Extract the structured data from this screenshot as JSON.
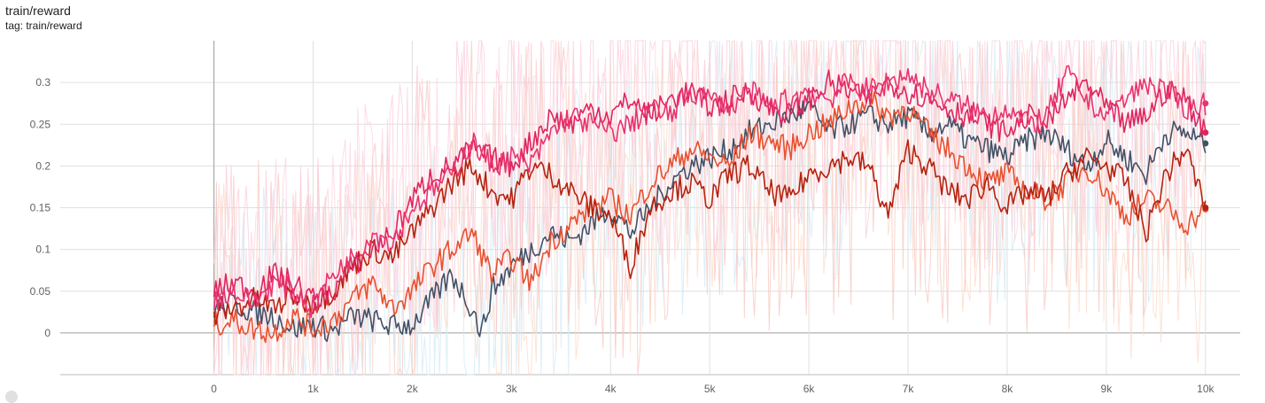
{
  "header": {
    "title": "train/reward",
    "subtitle": "tag: train/reward"
  },
  "chart_data": {
    "type": "line",
    "title": "train/reward",
    "subtitle": "tag: train/reward",
    "xlabel": "",
    "ylabel": "",
    "xlim": [
      -1550,
      10350
    ],
    "ylim": [
      -0.05,
      0.35
    ],
    "x_ticks": [
      {
        "value": 0,
        "label": "0"
      },
      {
        "value": 1000,
        "label": "1k"
      },
      {
        "value": 2000,
        "label": "2k"
      },
      {
        "value": 3000,
        "label": "3k"
      },
      {
        "value": 4000,
        "label": "4k"
      },
      {
        "value": 5000,
        "label": "5k"
      },
      {
        "value": 6000,
        "label": "6k"
      },
      {
        "value": 7000,
        "label": "7k"
      },
      {
        "value": 8000,
        "label": "8k"
      },
      {
        "value": 9000,
        "label": "9k"
      },
      {
        "value": 10000,
        "label": "10k"
      }
    ],
    "y_ticks": [
      {
        "value": 0,
        "label": "0"
      },
      {
        "value": 0.05,
        "label": "0.05"
      },
      {
        "value": 0.1,
        "label": "0.1"
      },
      {
        "value": 0.15,
        "label": "0.15"
      },
      {
        "value": 0.2,
        "label": "0.2"
      },
      {
        "value": 0.25,
        "label": "0.25"
      },
      {
        "value": 0.3,
        "label": "0.3"
      }
    ],
    "grid": true,
    "legend": "none",
    "series": [
      {
        "color": "#425066",
        "raw_color": "#cfe9f7",
        "x": [
          0,
          200,
          400,
          600,
          800,
          1000,
          1200,
          1400,
          1600,
          1800,
          2000,
          2200,
          2400,
          2600,
          2700,
          2800,
          3000,
          3200,
          3400,
          3600,
          3800,
          4000,
          4200,
          4400,
          4600,
          4800,
          5000,
          5200,
          5400,
          5600,
          5800,
          6000,
          6200,
          6400,
          6600,
          6800,
          7000,
          7200,
          7400,
          7600,
          7800,
          8000,
          8200,
          8400,
          8600,
          8800,
          9000,
          9200,
          9400,
          9600,
          9800,
          10000
        ],
        "y": [
          0.03,
          0.035,
          0.025,
          0.02,
          0.005,
          0.01,
          0.002,
          0.02,
          0.015,
          0.008,
          0.01,
          0.04,
          0.07,
          0.03,
          0.0,
          0.05,
          0.08,
          0.1,
          0.12,
          0.11,
          0.13,
          0.15,
          0.12,
          0.15,
          0.18,
          0.2,
          0.21,
          0.22,
          0.24,
          0.25,
          0.26,
          0.27,
          0.24,
          0.25,
          0.26,
          0.25,
          0.26,
          0.24,
          0.25,
          0.23,
          0.22,
          0.21,
          0.23,
          0.24,
          0.22,
          0.2,
          0.23,
          0.21,
          0.19,
          0.24,
          0.24,
          0.227
        ]
      },
      {
        "color": "#e8502f",
        "raw_color": "#fbd9c8",
        "x": [
          0,
          200,
          400,
          600,
          800,
          1000,
          1200,
          1400,
          1600,
          1800,
          2000,
          2200,
          2400,
          2600,
          2800,
          3000,
          3200,
          3400,
          3600,
          3800,
          4000,
          4200,
          4400,
          4600,
          4800,
          5000,
          5200,
          5400,
          5600,
          5800,
          6000,
          6200,
          6400,
          6600,
          6800,
          7000,
          7200,
          7400,
          7600,
          7800,
          8000,
          8200,
          8400,
          8600,
          8800,
          9000,
          9200,
          9400,
          9600,
          9800,
          10000
        ],
        "y": [
          0.01,
          0.015,
          0.005,
          0.0,
          0.02,
          0.005,
          0.015,
          0.04,
          0.06,
          0.03,
          0.05,
          0.08,
          0.1,
          0.12,
          0.07,
          0.09,
          0.06,
          0.11,
          0.13,
          0.15,
          0.16,
          0.14,
          0.18,
          0.2,
          0.22,
          0.21,
          0.2,
          0.24,
          0.23,
          0.22,
          0.24,
          0.25,
          0.27,
          0.28,
          0.26,
          0.27,
          0.24,
          0.22,
          0.2,
          0.18,
          0.19,
          0.17,
          0.16,
          0.18,
          0.2,
          0.17,
          0.14,
          0.16,
          0.15,
          0.13,
          0.148
        ]
      },
      {
        "color": "#b5220f",
        "raw_color": "#f7c6bd",
        "x": [
          0,
          200,
          400,
          600,
          800,
          1000,
          1200,
          1400,
          1600,
          1800,
          2000,
          2200,
          2400,
          2600,
          2800,
          3000,
          3200,
          3400,
          3600,
          3800,
          4000,
          4200,
          4400,
          4600,
          4800,
          5000,
          5200,
          5400,
          5600,
          5800,
          6000,
          6200,
          6400,
          6600,
          6800,
          7000,
          7200,
          7400,
          7600,
          7800,
          8000,
          8200,
          8400,
          8600,
          8800,
          9000,
          9200,
          9400,
          9600,
          9800,
          10000
        ],
        "y": [
          0.02,
          0.03,
          0.04,
          0.03,
          0.045,
          0.035,
          0.05,
          0.08,
          0.1,
          0.09,
          0.12,
          0.15,
          0.18,
          0.2,
          0.17,
          0.16,
          0.2,
          0.19,
          0.17,
          0.15,
          0.14,
          0.08,
          0.15,
          0.17,
          0.18,
          0.16,
          0.19,
          0.2,
          0.17,
          0.16,
          0.19,
          0.2,
          0.21,
          0.2,
          0.14,
          0.22,
          0.2,
          0.17,
          0.16,
          0.18,
          0.15,
          0.17,
          0.16,
          0.19,
          0.21,
          0.2,
          0.18,
          0.12,
          0.19,
          0.22,
          0.15
        ]
      },
      {
        "color": "#e0245e",
        "raw_color": "#f9cbd8",
        "x": [
          0,
          200,
          400,
          600,
          800,
          1000,
          1200,
          1400,
          1600,
          1800,
          2000,
          2200,
          2400,
          2600,
          2800,
          3000,
          3200,
          3400,
          3600,
          3800,
          4000,
          4200,
          4400,
          4600,
          4800,
          5000,
          5200,
          5400,
          5600,
          5800,
          6000,
          6200,
          6400,
          6600,
          6800,
          7000,
          7200,
          7400,
          7600,
          7800,
          8000,
          8200,
          8400,
          8600,
          8800,
          9000,
          9200,
          9400,
          9600,
          9800,
          10000
        ],
        "y": [
          0.05,
          0.06,
          0.05,
          0.07,
          0.06,
          0.04,
          0.05,
          0.08,
          0.1,
          0.12,
          0.16,
          0.19,
          0.2,
          0.22,
          0.21,
          0.2,
          0.23,
          0.26,
          0.25,
          0.27,
          0.26,
          0.28,
          0.26,
          0.28,
          0.29,
          0.27,
          0.28,
          0.29,
          0.27,
          0.26,
          0.28,
          0.3,
          0.29,
          0.28,
          0.3,
          0.29,
          0.28,
          0.27,
          0.26,
          0.25,
          0.24,
          0.26,
          0.25,
          0.28,
          0.3,
          0.27,
          0.25,
          0.26,
          0.29,
          0.28,
          0.24
        ]
      },
      {
        "color": "#e8336f",
        "raw_color": "#fbd3df",
        "x": [
          0,
          200,
          400,
          600,
          800,
          1000,
          1200,
          1400,
          1600,
          1800,
          2000,
          2200,
          2400,
          2600,
          2800,
          3000,
          3200,
          3400,
          3600,
          3800,
          4000,
          4200,
          4400,
          4600,
          4800,
          5000,
          5200,
          5400,
          5600,
          5800,
          6000,
          6200,
          6400,
          6600,
          6800,
          7000,
          7200,
          7400,
          7600,
          7800,
          8000,
          8200,
          8400,
          8600,
          8800,
          9000,
          9200,
          9400,
          9600,
          9800,
          10000
        ],
        "y": [
          0.04,
          0.05,
          0.035,
          0.06,
          0.05,
          0.03,
          0.07,
          0.09,
          0.12,
          0.11,
          0.15,
          0.17,
          0.19,
          0.23,
          0.2,
          0.21,
          0.2,
          0.24,
          0.26,
          0.25,
          0.24,
          0.25,
          0.27,
          0.26,
          0.29,
          0.28,
          0.27,
          0.29,
          0.27,
          0.28,
          0.29,
          0.28,
          0.3,
          0.29,
          0.3,
          0.31,
          0.29,
          0.28,
          0.27,
          0.26,
          0.27,
          0.25,
          0.26,
          0.31,
          0.28,
          0.26,
          0.28,
          0.3,
          0.29,
          0.27,
          0.275
        ]
      }
    ]
  }
}
